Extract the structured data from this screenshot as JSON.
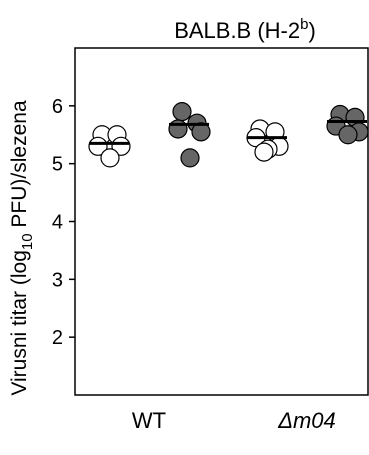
{
  "chart_data": {
    "type": "dot",
    "title": [
      "BALB.B (H-2",
      "b",
      ")"
    ],
    "ylabel": [
      "Virusni titar (log",
      "10",
      " PFU)/slezena"
    ],
    "categories": [
      "WT",
      "Δm04"
    ],
    "series": [
      {
        "color": "#ffffff",
        "values": [
          [
            5.5,
            5.5,
            5.3,
            5.3,
            5.1
          ],
          [
            5.6,
            5.55,
            5.45,
            5.3,
            5.25,
            5.2
          ]
        ],
        "medians": [
          5.35,
          5.45
        ]
      },
      {
        "color": "#666666",
        "values": [
          [
            5.9,
            5.7,
            5.6,
            5.55,
            5.1
          ],
          [
            5.85,
            5.8,
            5.65,
            5.55,
            5.5
          ]
        ],
        "medians": [
          5.68,
          5.73
        ]
      }
    ],
    "ylim": [
      1,
      7
    ],
    "yticks": [
      2,
      3,
      4,
      5,
      6
    ]
  }
}
